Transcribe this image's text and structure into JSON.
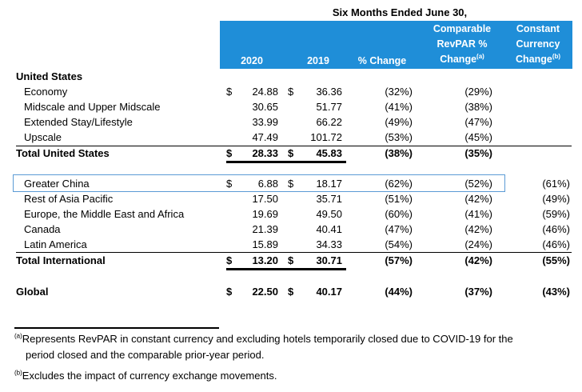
{
  "header": {
    "period": "Six Months Ended June 30,",
    "col_2020": "2020",
    "col_2019": "2019",
    "col_pct": "% Change",
    "col_rev_line1": "Comparable",
    "col_rev_line2": "RevPAR %",
    "col_rev_line3": "Change",
    "col_rev_sup": "(a)",
    "col_cc_line1": "Constant",
    "col_cc_line2": "Currency",
    "col_cc_line3": "Change",
    "col_cc_sup": "(b)"
  },
  "us": {
    "title": "United States",
    "rows": [
      {
        "label": "Economy",
        "dollar1": "$",
        "v2020": "24.88",
        "dollar2": "$",
        "v2019": "36.36",
        "pct": "(32%)",
        "rev": "(29%)",
        "cc": ""
      },
      {
        "label": "Midscale and Upper Midscale",
        "dollar1": "",
        "v2020": "30.65",
        "dollar2": "",
        "v2019": "51.77",
        "pct": "(41%)",
        "rev": "(38%)",
        "cc": ""
      },
      {
        "label": "Extended Stay/Lifestyle",
        "dollar1": "",
        "v2020": "33.99",
        "dollar2": "",
        "v2019": "66.22",
        "pct": "(49%)",
        "rev": "(47%)",
        "cc": ""
      },
      {
        "label": "Upscale",
        "dollar1": "",
        "v2020": "47.49",
        "dollar2": "",
        "v2019": "101.72",
        "pct": "(53%)",
        "rev": "(45%)",
        "cc": ""
      }
    ],
    "total": {
      "label": "Total United States",
      "dollar1": "$",
      "v2020": "28.33",
      "dollar2": "$",
      "v2019": "45.83",
      "pct": "(38%)",
      "rev": "(35%)",
      "cc": ""
    }
  },
  "intl": {
    "rows": [
      {
        "label": "Greater China",
        "dollar1": "$",
        "v2020": "6.88",
        "dollar2": "$",
        "v2019": "18.17",
        "pct": "(62%)",
        "rev": "(52%)",
        "cc": "(61%)"
      },
      {
        "label": "Rest of Asia Pacific",
        "dollar1": "",
        "v2020": "17.50",
        "dollar2": "",
        "v2019": "35.71",
        "pct": "(51%)",
        "rev": "(42%)",
        "cc": "(49%)"
      },
      {
        "label": "Europe, the Middle East and Africa",
        "dollar1": "",
        "v2020": "19.69",
        "dollar2": "",
        "v2019": "49.50",
        "pct": "(60%)",
        "rev": "(41%)",
        "cc": "(59%)"
      },
      {
        "label": "Canada",
        "dollar1": "",
        "v2020": "21.39",
        "dollar2": "",
        "v2019": "40.41",
        "pct": "(47%)",
        "rev": "(42%)",
        "cc": "(46%)"
      },
      {
        "label": "Latin America",
        "dollar1": "",
        "v2020": "15.89",
        "dollar2": "",
        "v2019": "34.33",
        "pct": "(54%)",
        "rev": "(24%)",
        "cc": "(46%)"
      }
    ],
    "total": {
      "label": "Total International",
      "dollar1": "$",
      "v2020": "13.20",
      "dollar2": "$",
      "v2019": "30.71",
      "pct": "(57%)",
      "rev": "(42%)",
      "cc": "(55%)"
    }
  },
  "global": {
    "label": "Global",
    "dollar1": "$",
    "v2020": "22.50",
    "dollar2": "$",
    "v2019": "40.17",
    "pct": "(44%)",
    "rev": "(37%)",
    "cc": "(43%)"
  },
  "footnotes": {
    "a_mark": "(a)",
    "a_line1": "Represents RevPAR in constant currency and excluding hotels temporarily closed due to COVID-19 for the",
    "a_line2": "period closed and the comparable prior-year period.",
    "b_mark": "(b)",
    "b_text": "Excludes the impact of currency exchange movements."
  }
}
